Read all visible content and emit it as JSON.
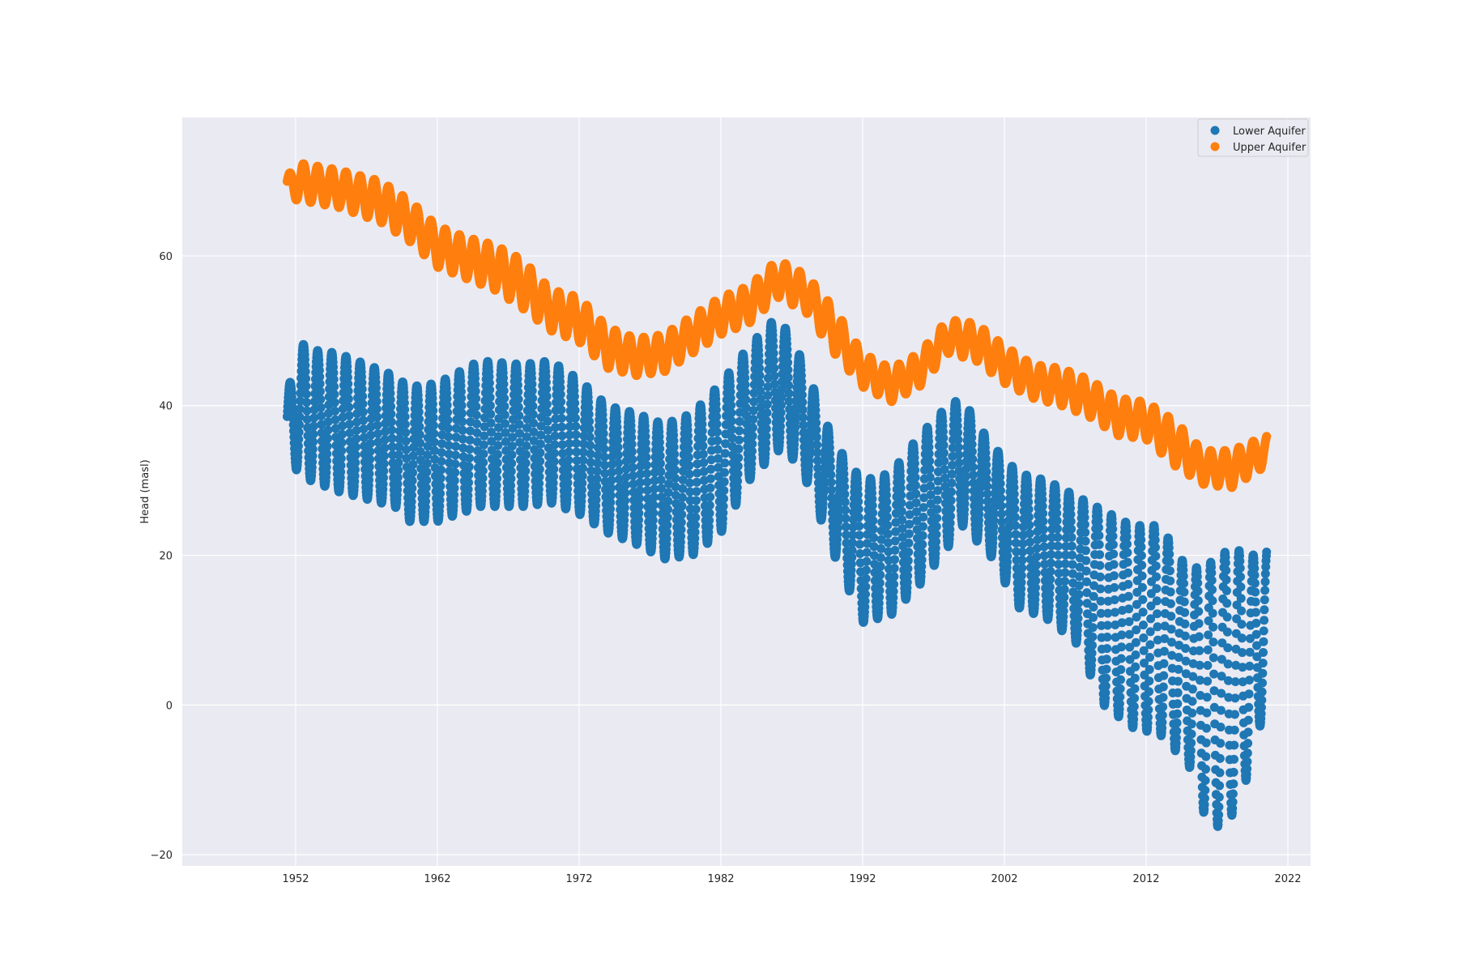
{
  "chart_data": {
    "type": "scatter",
    "title": "",
    "xlabel": "",
    "ylabel": "Head (masl)",
    "xlim": [
      1944,
      2023.6
    ],
    "ylim": [
      -21.5,
      78.5
    ],
    "x_ticks": [
      1952,
      1962,
      1972,
      1982,
      1992,
      2002,
      2012,
      2022
    ],
    "x_tick_labels": [
      "1952",
      "1962",
      "1972",
      "1982",
      "1992",
      "2002",
      "2012",
      "2022"
    ],
    "y_ticks": [
      -20,
      0,
      20,
      40,
      60
    ],
    "y_tick_labels": [
      "−20",
      "0",
      "20",
      "40",
      "60"
    ],
    "grid": true,
    "legend": {
      "position": "top-right"
    },
    "colors": {
      "background": "#eaeaf2",
      "grid": "#ffffff",
      "lower": "#1f77b4",
      "upper": "#ff7f0e"
    },
    "x_range": [
      1951.4,
      2020.5
    ],
    "period_years": 1.0,
    "series": [
      {
        "name": "Lower Aquifer",
        "color": "#1f77b4",
        "marker": "circle",
        "envelope": {
          "x": [
            1951.4,
            1952,
            1953,
            1955,
            1957,
            1959,
            1960,
            1962,
            1965,
            1968,
            1970,
            1972,
            1974,
            1976,
            1978,
            1980,
            1982,
            1984,
            1986,
            1987,
            1988,
            1990,
            1992,
            1994,
            1996,
            1998,
            1999,
            2001,
            2003,
            2005,
            2007,
            2009,
            2011,
            2013,
            2015,
            2016.5,
            2018,
            2019.5,
            2020.5
          ],
          "max": [
            40.5,
            49,
            47.5,
            47,
            45.5,
            44,
            42.5,
            43,
            46,
            45.5,
            46,
            43.5,
            40,
            39,
            37.5,
            39,
            43,
            48,
            52,
            49,
            45,
            35,
            30,
            31,
            36,
            40,
            41,
            35,
            31,
            30,
            28,
            26,
            24,
            24,
            18,
            19,
            21,
            20,
            21
          ],
          "min": [
            31.5,
            31.5,
            30,
            28.5,
            27.5,
            26.5,
            24.5,
            24.5,
            26.5,
            26.5,
            27,
            25.5,
            23,
            21.5,
            19.5,
            20,
            23,
            30,
            34,
            33,
            30,
            20,
            11,
            12,
            16,
            21,
            24,
            20,
            13,
            11.5,
            8.5,
            0,
            -3,
            -4,
            -8,
            -17,
            -15,
            -8,
            1.5
          ]
        }
      },
      {
        "name": "Upper Aquifer",
        "color": "#ff7f0e",
        "marker": "circle",
        "envelope": {
          "x": [
            1951.4,
            1952,
            1955,
            1958,
            1960,
            1962,
            1964,
            1966,
            1968,
            1970,
            1972,
            1974,
            1976,
            1978,
            1980,
            1982,
            1984,
            1986,
            1988,
            1990,
            1992,
            1994,
            1996,
            1998,
            2000,
            2002,
            2004,
            2006,
            2008,
            2010,
            2012,
            2014,
            2016,
            2018,
            2020.5
          ],
          "max": [
            70.5,
            72.5,
            71.5,
            70,
            67.5,
            64,
            62.5,
            61.5,
            59.5,
            55.5,
            54.5,
            50.5,
            49,
            49.5,
            52,
            54.5,
            56,
            59.5,
            57.5,
            53,
            47,
            45,
            47,
            51.5,
            51,
            48,
            45.5,
            45,
            43.5,
            41,
            40.5,
            38,
            34,
            34,
            36
          ],
          "min": [
            68,
            67.5,
            66.5,
            64.5,
            62,
            58.5,
            57,
            55.5,
            53,
            50,
            48.5,
            45,
            44,
            44.5,
            47,
            49.5,
            51,
            54.5,
            52.5,
            47,
            42.5,
            40.5,
            42.5,
            47,
            46,
            43,
            41,
            40,
            38.5,
            36,
            35.5,
            32,
            29.5,
            29,
            32
          ]
        }
      }
    ]
  }
}
